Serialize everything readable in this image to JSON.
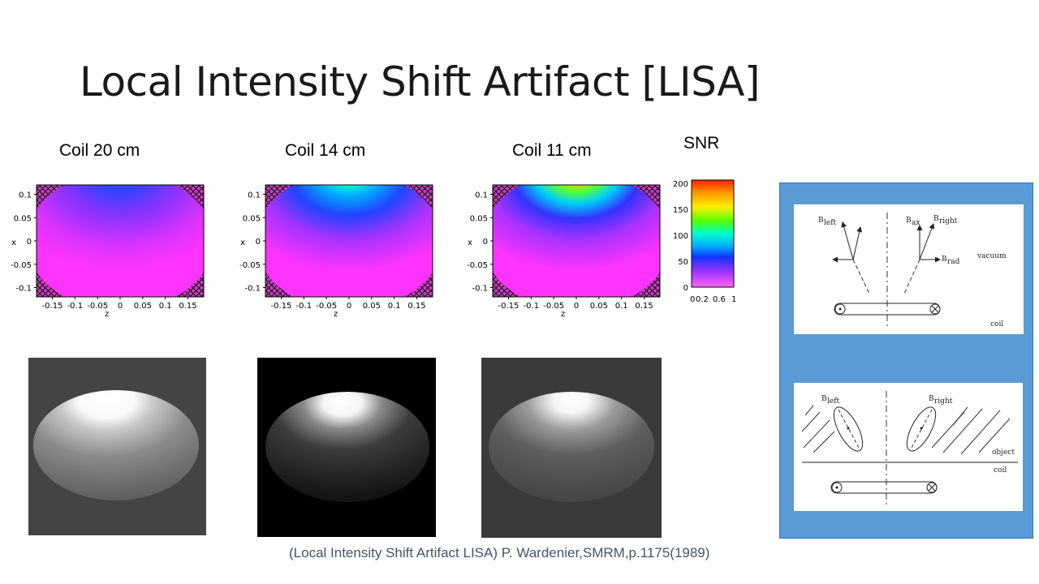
{
  "slide": {
    "title": "Local Intensity Shift Artifact [LISA]",
    "caption": "(Local Intensity Shift Artifact LISA) P. Wardenier,SMRM,p.1175(1989)"
  },
  "panels": [
    {
      "label": "Coil 20 cm",
      "peak_snr": 60
    },
    {
      "label": "Coil 14 cm",
      "peak_snr": 120
    },
    {
      "label": "Coil 11 cm",
      "peak_snr": 200
    }
  ],
  "axes": {
    "x_label": "z",
    "y_label": "x",
    "x_ticks": [
      "-0.15",
      "-0.1",
      "-0.05",
      "0",
      "0.05",
      "0.1",
      "0.15"
    ],
    "y_ticks": [
      "0.1",
      "0.05",
      "0",
      "-0.05",
      "-0.1"
    ]
  },
  "colorbar": {
    "label": "SNR",
    "ticks": [
      "200",
      "150",
      "100",
      "50",
      "0"
    ],
    "x_ticks": [
      "0",
      "0.2",
      "0.6",
      "1"
    ]
  },
  "diagram_top": {
    "b_left": "B",
    "b_left_sub": "left",
    "b_ax": "B",
    "b_ax_sub": "ax",
    "b_right": "B",
    "b_right_sub": "right",
    "b_rad": "B",
    "b_rad_sub": "rad",
    "vacuum": "vacuum",
    "coil": "coil"
  },
  "diagram_bottom": {
    "b_left": "B",
    "b_left_sub": "left",
    "b_right": "B",
    "b_right_sub": "right",
    "object": "object",
    "coil": "coil"
  },
  "colors": {
    "diagram_panel": "#5b9bd5",
    "caption": "#44546a",
    "hatch_fill": "#c040b8",
    "field_base": "#ff33ff"
  }
}
